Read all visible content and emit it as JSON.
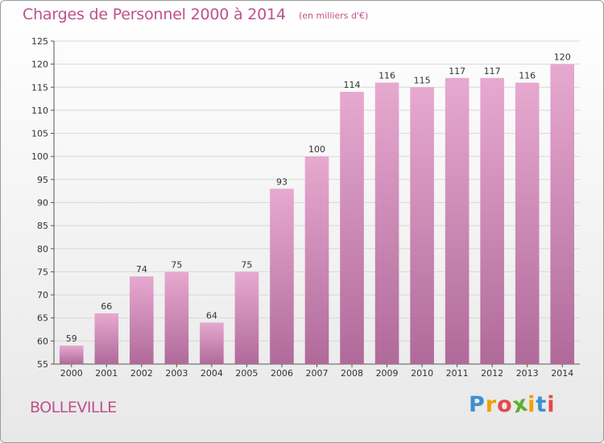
{
  "header": {
    "title": "Charges de Personnel 2000 à 2014",
    "subtitle": "(en milliers d'€)"
  },
  "footer": {
    "town": "BOLLEVILLE",
    "logo_letters": [
      "P",
      "r",
      "o",
      "x",
      "i",
      "t",
      "i"
    ],
    "logo_colors": [
      "#3d8fd0",
      "#f0a000",
      "#e8484a",
      "#5ab030",
      "#f0a000",
      "#3d8fd0",
      "#e8484a"
    ]
  },
  "colors": {
    "bar_top": "#e7a9d0",
    "bar_bottom": "#b06a9a",
    "title": "#c0508c",
    "grid": "#d8d8d8"
  },
  "chart_data": {
    "type": "bar",
    "title": "Charges de Personnel 2000 à 2014",
    "subtitle": "(en milliers d'€)",
    "categories": [
      "2000",
      "2001",
      "2002",
      "2003",
      "2004",
      "2005",
      "2006",
      "2007",
      "2008",
      "2009",
      "2010",
      "2011",
      "2012",
      "2013",
      "2014"
    ],
    "values": [
      59,
      66,
      74,
      75,
      64,
      75,
      93,
      100,
      114,
      116,
      115,
      117,
      117,
      116,
      120
    ],
    "ylim": [
      55,
      125
    ],
    "yticks": [
      55,
      60,
      65,
      70,
      75,
      80,
      85,
      90,
      95,
      100,
      105,
      110,
      115,
      120,
      125
    ],
    "grid": true,
    "legend": "none"
  }
}
